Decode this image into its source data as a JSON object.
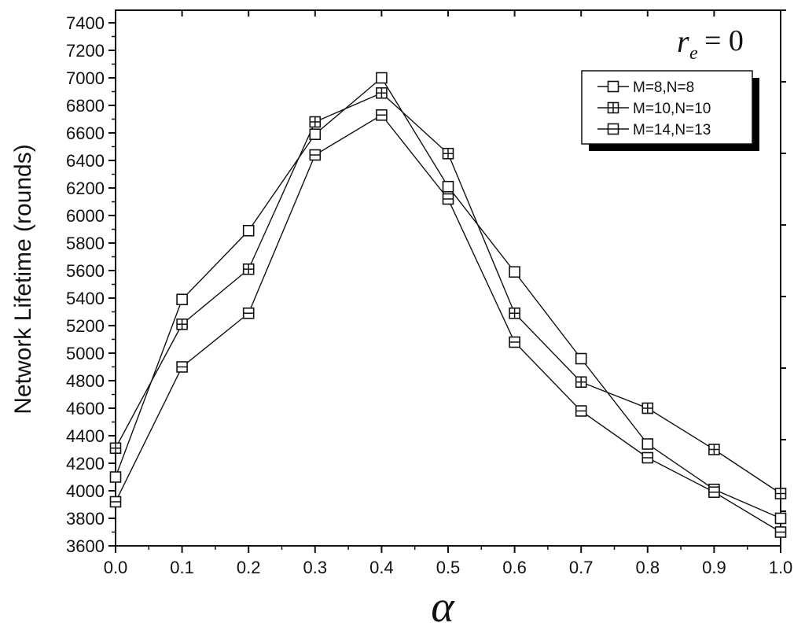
{
  "chart_data": {
    "type": "line",
    "title": "",
    "xlabel": "α",
    "ylabel": "Network Lifetime (rounds)",
    "xlim": [
      0.0,
      1.0
    ],
    "ylim": [
      3600,
      7500
    ],
    "x_ticks": [
      "0.0",
      "0.1",
      "0.2",
      "0.3",
      "0.4",
      "0.5",
      "0.6",
      "0.7",
      "0.8",
      "0.9",
      "1.0"
    ],
    "y_ticks": [
      "3600",
      "3800",
      "4000",
      "4200",
      "4400",
      "4600",
      "4800",
      "5000",
      "5200",
      "5400",
      "5600",
      "5800",
      "6000",
      "6200",
      "6400",
      "6600",
      "6800",
      "7000",
      "7200",
      "7400"
    ],
    "x": [
      0.0,
      0.1,
      0.2,
      0.3,
      0.4,
      0.5,
      0.6,
      0.7,
      0.8,
      0.9,
      1.0
    ],
    "series": [
      {
        "name": "M=8,N=8",
        "marker": "square",
        "values": [
          4100,
          5390,
          5890,
          6590,
          7000,
          6210,
          5590,
          4960,
          4340,
          4010,
          3800
        ]
      },
      {
        "name": "M=10,N=10",
        "marker": "square-plus",
        "values": [
          4310,
          5210,
          5610,
          6680,
          6890,
          6450,
          5290,
          4790,
          4600,
          4300,
          3980
        ]
      },
      {
        "name": "M=14,N=13",
        "marker": "square-minus",
        "values": [
          3920,
          4900,
          5290,
          6440,
          6730,
          6120,
          5080,
          4580,
          4240,
          3990,
          3700
        ]
      }
    ],
    "legend_position": "top-right",
    "annotation": {
      "main": "r",
      "sub": "e",
      "rest": "= 0"
    },
    "grid": false
  }
}
